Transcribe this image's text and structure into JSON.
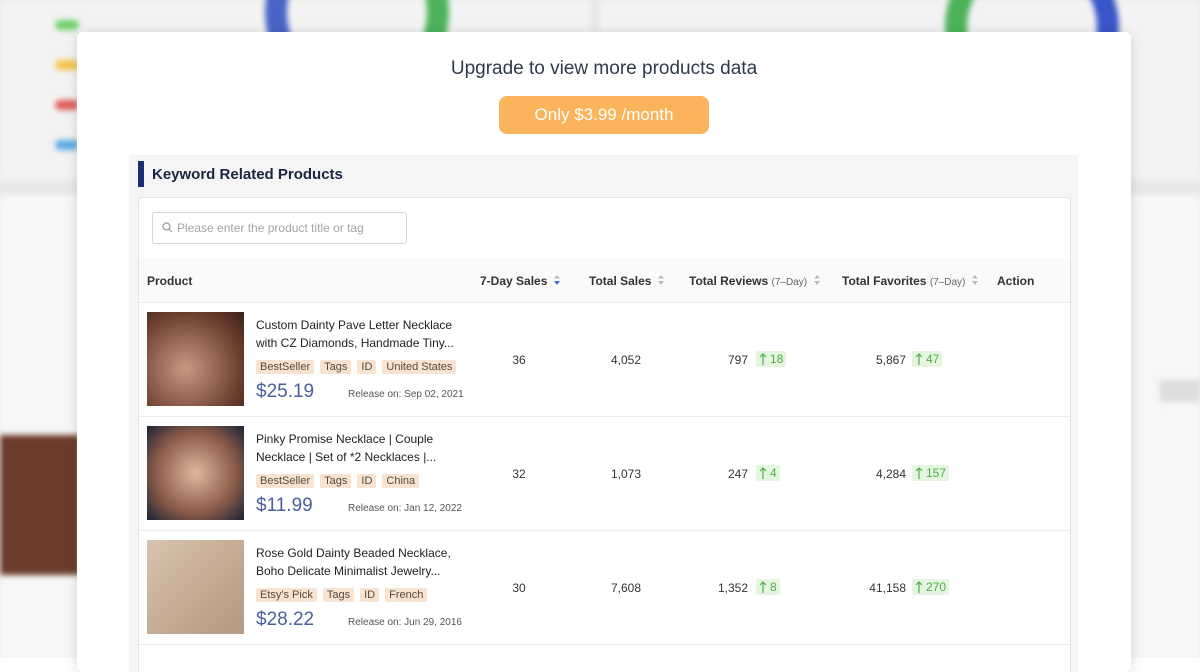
{
  "modal": {
    "title": "Upgrade to view more products data",
    "button": "Only $3.99 /month"
  },
  "panel": {
    "title": "Keyword Related Products",
    "search_placeholder": "Please enter the product title or tag"
  },
  "table": {
    "columns": [
      {
        "label": "Product"
      },
      {
        "label": "7-Day Sales"
      },
      {
        "label": "Total Sales"
      },
      {
        "label": "Total Reviews",
        "sub": "(7–Day)"
      },
      {
        "label": "Total Favorites",
        "sub": "(7–Day)"
      },
      {
        "label": "Action"
      }
    ],
    "rows": [
      {
        "title": "Custom Dainty Pave Letter Necklace with CZ Diamonds, Handmade Tiny...",
        "tags": [
          "BestSeller",
          "Tags",
          "ID",
          "United States"
        ],
        "price": "$25.19",
        "release": "Release on: Sep 02, 2021",
        "sales_7d": "36",
        "total_sales": "4,052",
        "reviews": "797",
        "reviews_change": "18",
        "favorites": "5,867",
        "favorites_change": "47"
      },
      {
        "title": "Pinky Promise Necklace | Couple Necklace | Set of *2 Necklaces |...",
        "tags": [
          "BestSeller",
          "Tags",
          "ID",
          "China"
        ],
        "price": "$11.99",
        "release": "Release on: Jan 12, 2022",
        "sales_7d": "32",
        "total_sales": "1,073",
        "reviews": "247",
        "reviews_change": "4",
        "favorites": "4,284",
        "favorites_change": "157"
      },
      {
        "title": "Rose Gold Dainty Beaded Necklace, Boho Delicate Minimalist Jewelry...",
        "tags": [
          "Etsy's Pick",
          "Tags",
          "ID",
          "French"
        ],
        "price": "$28.22",
        "release": "Release on: Jun 29, 2016",
        "sales_7d": "30",
        "total_sales": "7,608",
        "reviews": "1,352",
        "reviews_change": "8",
        "favorites": "41,158",
        "favorites_change": "270"
      }
    ]
  }
}
